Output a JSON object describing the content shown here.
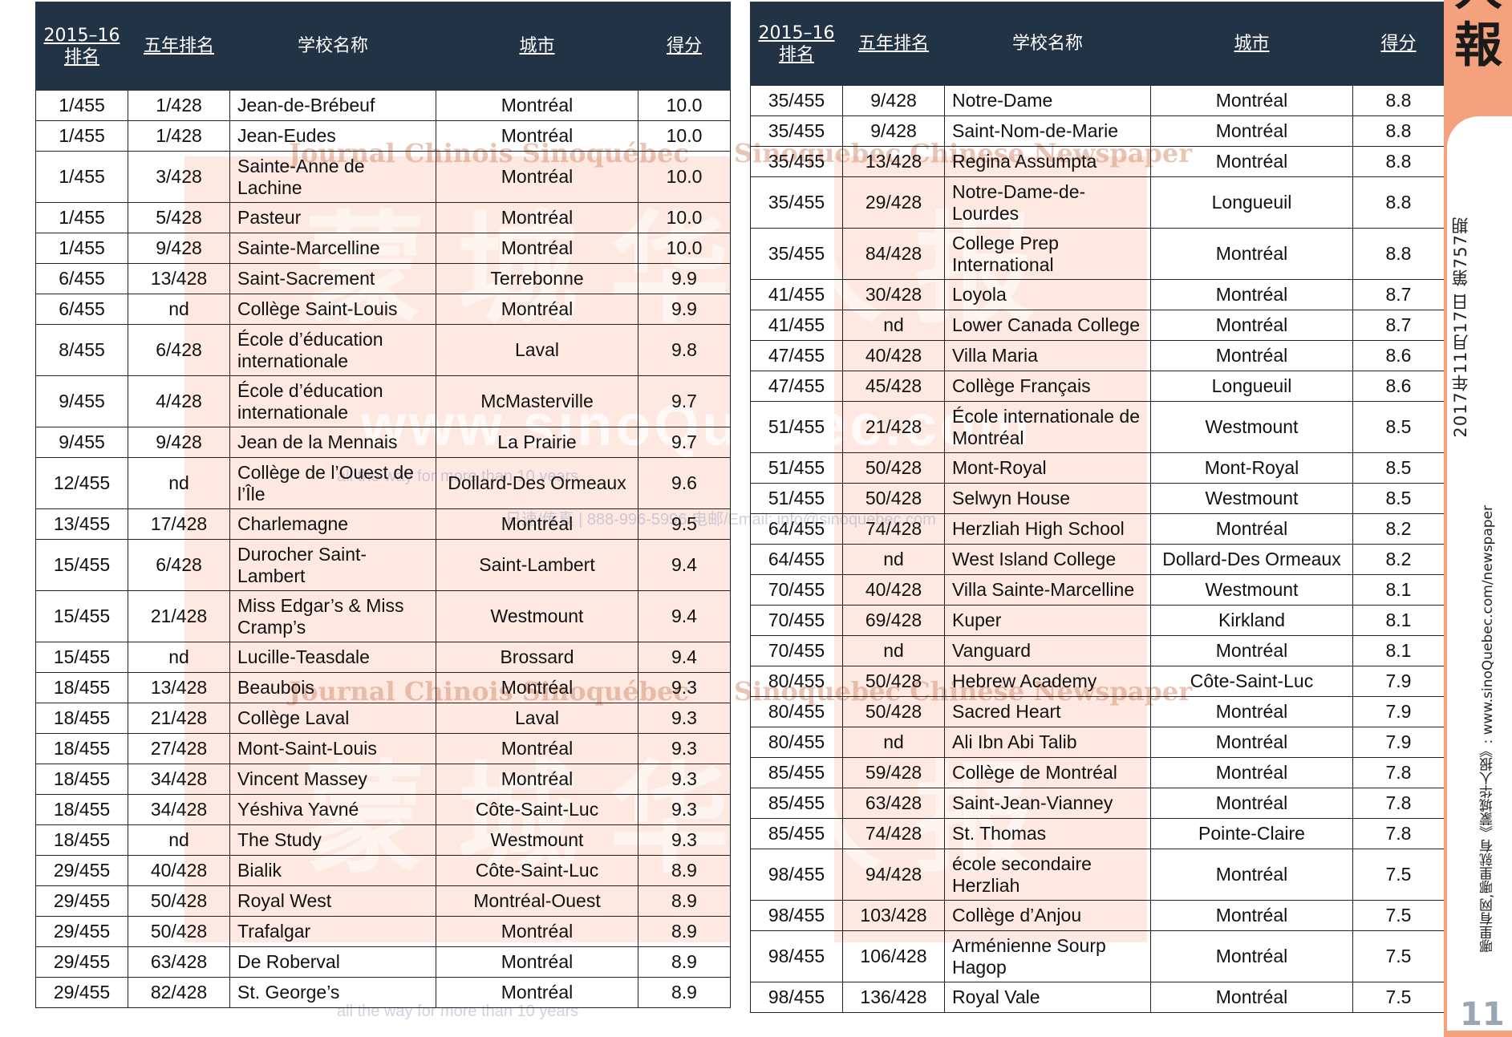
{
  "headers": {
    "rank2015": "2015–16排名",
    "rank5yr": "五年排名",
    "school": "学校名称",
    "city": "城市",
    "score": "得分"
  },
  "left_rows": [
    {
      "rank": "1/455",
      "five": "1/428",
      "school": "Jean-de-Brébeuf",
      "city": "Montréal",
      "score": "10.0"
    },
    {
      "rank": "1/455",
      "five": "1/428",
      "school": "Jean-Eudes",
      "city": "Montréal",
      "score": "10.0"
    },
    {
      "rank": "1/455",
      "five": "3/428",
      "school": "Sainte-Anne de Lachine",
      "city": "Montréal",
      "score": "10.0",
      "tall": true
    },
    {
      "rank": "1/455",
      "five": "5/428",
      "school": "Pasteur",
      "city": "Montréal",
      "score": "10.0"
    },
    {
      "rank": "1/455",
      "five": "9/428",
      "school": "Sainte-Marcelline",
      "city": "Montréal",
      "score": "10.0"
    },
    {
      "rank": "6/455",
      "five": "13/428",
      "school": "Saint-Sacrement",
      "city": "Terrebonne",
      "score": "9.9"
    },
    {
      "rank": "6/455",
      "five": "nd",
      "school": "Collège Saint-Louis",
      "city": "Montréal",
      "score": "9.9"
    },
    {
      "rank": "8/455",
      "five": "6/428",
      "school": "École d’éducation internationale",
      "city": "Laval",
      "score": "9.8",
      "tall": true
    },
    {
      "rank": "9/455",
      "five": "4/428",
      "school": "École d’éducation internationale",
      "city": "McMasterville",
      "score": "9.7",
      "tall": true
    },
    {
      "rank": "9/455",
      "five": "9/428",
      "school": "Jean de la Mennais",
      "city": "La Prairie",
      "score": "9.7"
    },
    {
      "rank": "12/455",
      "five": "nd",
      "school": "Collège de l’Ouest de l’Île",
      "city": "Dollard-Des Ormeaux",
      "score": "9.6",
      "tall": true
    },
    {
      "rank": "13/455",
      "five": "17/428",
      "school": "Charlemagne",
      "city": "Montréal",
      "score": "9.5"
    },
    {
      "rank": "15/455",
      "five": "6/428",
      "school": "Durocher Saint-Lambert",
      "city": "Saint-Lambert",
      "score": "9.4",
      "tall": true
    },
    {
      "rank": "15/455",
      "five": "21/428",
      "school": "Miss Edgar’s & Miss Cramp’s",
      "city": "Westmount",
      "score": "9.4",
      "tall": true
    },
    {
      "rank": "15/455",
      "five": "nd",
      "school": "Lucille-Teasdale",
      "city": "Brossard",
      "score": "9.4"
    },
    {
      "rank": "18/455",
      "five": "13/428",
      "school": "Beaubois",
      "city": "Montréal",
      "score": "9.3"
    },
    {
      "rank": "18/455",
      "five": "21/428",
      "school": "Collège Laval",
      "city": "Laval",
      "score": "9.3"
    },
    {
      "rank": "18/455",
      "five": "27/428",
      "school": "Mont-Saint-Louis",
      "city": "Montréal",
      "score": "9.3"
    },
    {
      "rank": "18/455",
      "five": "34/428",
      "school": "Vincent Massey",
      "city": "Montréal",
      "score": "9.3"
    },
    {
      "rank": "18/455",
      "five": "34/428",
      "school": "Yéshiva Yavné",
      "city": "Côte-Saint-Luc",
      "score": "9.3"
    },
    {
      "rank": "18/455",
      "five": "nd",
      "school": "The Study",
      "city": "Westmount",
      "score": "9.3"
    },
    {
      "rank": "29/455",
      "five": "40/428",
      "school": "Bialik",
      "city": "Côte-Saint-Luc",
      "score": "8.9"
    },
    {
      "rank": "29/455",
      "five": "50/428",
      "school": "Royal West",
      "city": "Montréal-Ouest",
      "score": "8.9"
    },
    {
      "rank": "29/455",
      "five": "50/428",
      "school": "Trafalgar",
      "city": "Montréal",
      "score": "8.9"
    },
    {
      "rank": "29/455",
      "five": "63/428",
      "school": "De Roberval",
      "city": "Montréal",
      "score": "8.9"
    },
    {
      "rank": "29/455",
      "five": "82/428",
      "school": "St. George’s",
      "city": "Montréal",
      "score": "8.9"
    }
  ],
  "right_rows": [
    {
      "rank": "35/455",
      "five": "9/428",
      "school": "Notre-Dame",
      "city": "Montréal",
      "score": "8.8"
    },
    {
      "rank": "35/455",
      "five": "9/428",
      "school": "Saint-Nom-de-Marie",
      "city": "Montréal",
      "score": "8.8"
    },
    {
      "rank": "35/455",
      "five": "13/428",
      "school": "Regina Assumpta",
      "city": "Montréal",
      "score": "8.8"
    },
    {
      "rank": "35/455",
      "five": "29/428",
      "school": "Notre-Dame-de-Lourdes",
      "city": "Longueuil",
      "score": "8.8",
      "tall": true
    },
    {
      "rank": "35/455",
      "five": "84/428",
      "school": "College Prep International",
      "city": "Montréal",
      "score": "8.8",
      "tall": true
    },
    {
      "rank": "41/455",
      "five": "30/428",
      "school": "Loyola",
      "city": "Montréal",
      "score": "8.7"
    },
    {
      "rank": "41/455",
      "five": "nd",
      "school": "Lower Canada College",
      "city": "Montréal",
      "score": "8.7"
    },
    {
      "rank": "47/455",
      "five": "40/428",
      "school": "Villa Maria",
      "city": "Montréal",
      "score": "8.6"
    },
    {
      "rank": "47/455",
      "five": "45/428",
      "school": "Collège Français",
      "city": "Longueuil",
      "score": "8.6"
    },
    {
      "rank": "51/455",
      "five": "21/428",
      "school": "École internationale de Montréal",
      "city": "Westmount",
      "score": "8.5",
      "tall": true
    },
    {
      "rank": "51/455",
      "five": "50/428",
      "school": "Mont-Royal",
      "city": "Mont-Royal",
      "score": "8.5"
    },
    {
      "rank": "51/455",
      "five": "50/428",
      "school": "Selwyn House",
      "city": "Westmount",
      "score": "8.5"
    },
    {
      "rank": "64/455",
      "five": "74/428",
      "school": "Herzliah High School",
      "city": "Montréal",
      "score": "8.2"
    },
    {
      "rank": "64/455",
      "five": "nd",
      "school": "West Island College",
      "city": "Dollard-Des Ormeaux",
      "score": "8.2"
    },
    {
      "rank": "70/455",
      "five": "40/428",
      "school": "Villa Sainte-Marcelline",
      "city": "Westmount",
      "score": "8.1"
    },
    {
      "rank": "70/455",
      "five": "69/428",
      "school": "Kuper",
      "city": "Kirkland",
      "score": "8.1"
    },
    {
      "rank": "70/455",
      "five": "nd",
      "school": "Vanguard",
      "city": "Montréal",
      "score": "8.1"
    },
    {
      "rank": "80/455",
      "five": "50/428",
      "school": "Hebrew Academy",
      "city": "Côte-Saint-Luc",
      "score": "7.9"
    },
    {
      "rank": "80/455",
      "five": "50/428",
      "school": "Sacred Heart",
      "city": "Montréal",
      "score": "7.9"
    },
    {
      "rank": "80/455",
      "five": "nd",
      "school": "Ali Ibn Abi Talib",
      "city": "Montréal",
      "score": "7.9"
    },
    {
      "rank": "85/455",
      "five": "59/428",
      "school": "Collège de Montréal",
      "city": "Montréal",
      "score": "7.8"
    },
    {
      "rank": "85/455",
      "five": "63/428",
      "school": "Saint-Jean-Vianney",
      "city": "Montréal",
      "score": "7.8"
    },
    {
      "rank": "85/455",
      "five": "74/428",
      "school": "St. Thomas",
      "city": "Pointe-Claire",
      "score": "7.8"
    },
    {
      "rank": "98/455",
      "five": "94/428",
      "school": "école secondaire Herzliah",
      "city": "Montréal",
      "score": "7.5",
      "tall": true
    },
    {
      "rank": "98/455",
      "five": "103/428",
      "school": "Collège d’Anjou",
      "city": "Montréal",
      "score": "7.5"
    },
    {
      "rank": "98/455",
      "five": "106/428",
      "school": "Arménienne Sourp Hagop",
      "city": "Montréal",
      "score": "7.5",
      "tall": true
    },
    {
      "rank": "98/455",
      "five": "136/428",
      "school": "Royal Vale",
      "city": "Montréal",
      "score": "7.5"
    }
  ],
  "sidebar": {
    "paper_char_top": "人",
    "paper_char": "報",
    "issue_date": "2017年11月17日 第757期",
    "footer_note": "哪里有网,哪里就有《蒙城华人报》: www.sinoQuebec.com/newspaper",
    "page_number": "11"
  },
  "watermark": {
    "journal_fr": "Journal Chinois Sinoquébec",
    "journal_en": "Sinoquebec Chinese Newspaper",
    "url": "www.sinoQuebec.com",
    "years": "all the way for more than 10 years",
    "phone": "日速/传真 | 888-996-5996 电邮/Email: info@sinoquebec.com",
    "cn_chars": "蒙城华人报"
  },
  "colors": {
    "header_bg": "#223345",
    "sidebar_accent": "#f4a27e",
    "watermark": "#f47846"
  }
}
